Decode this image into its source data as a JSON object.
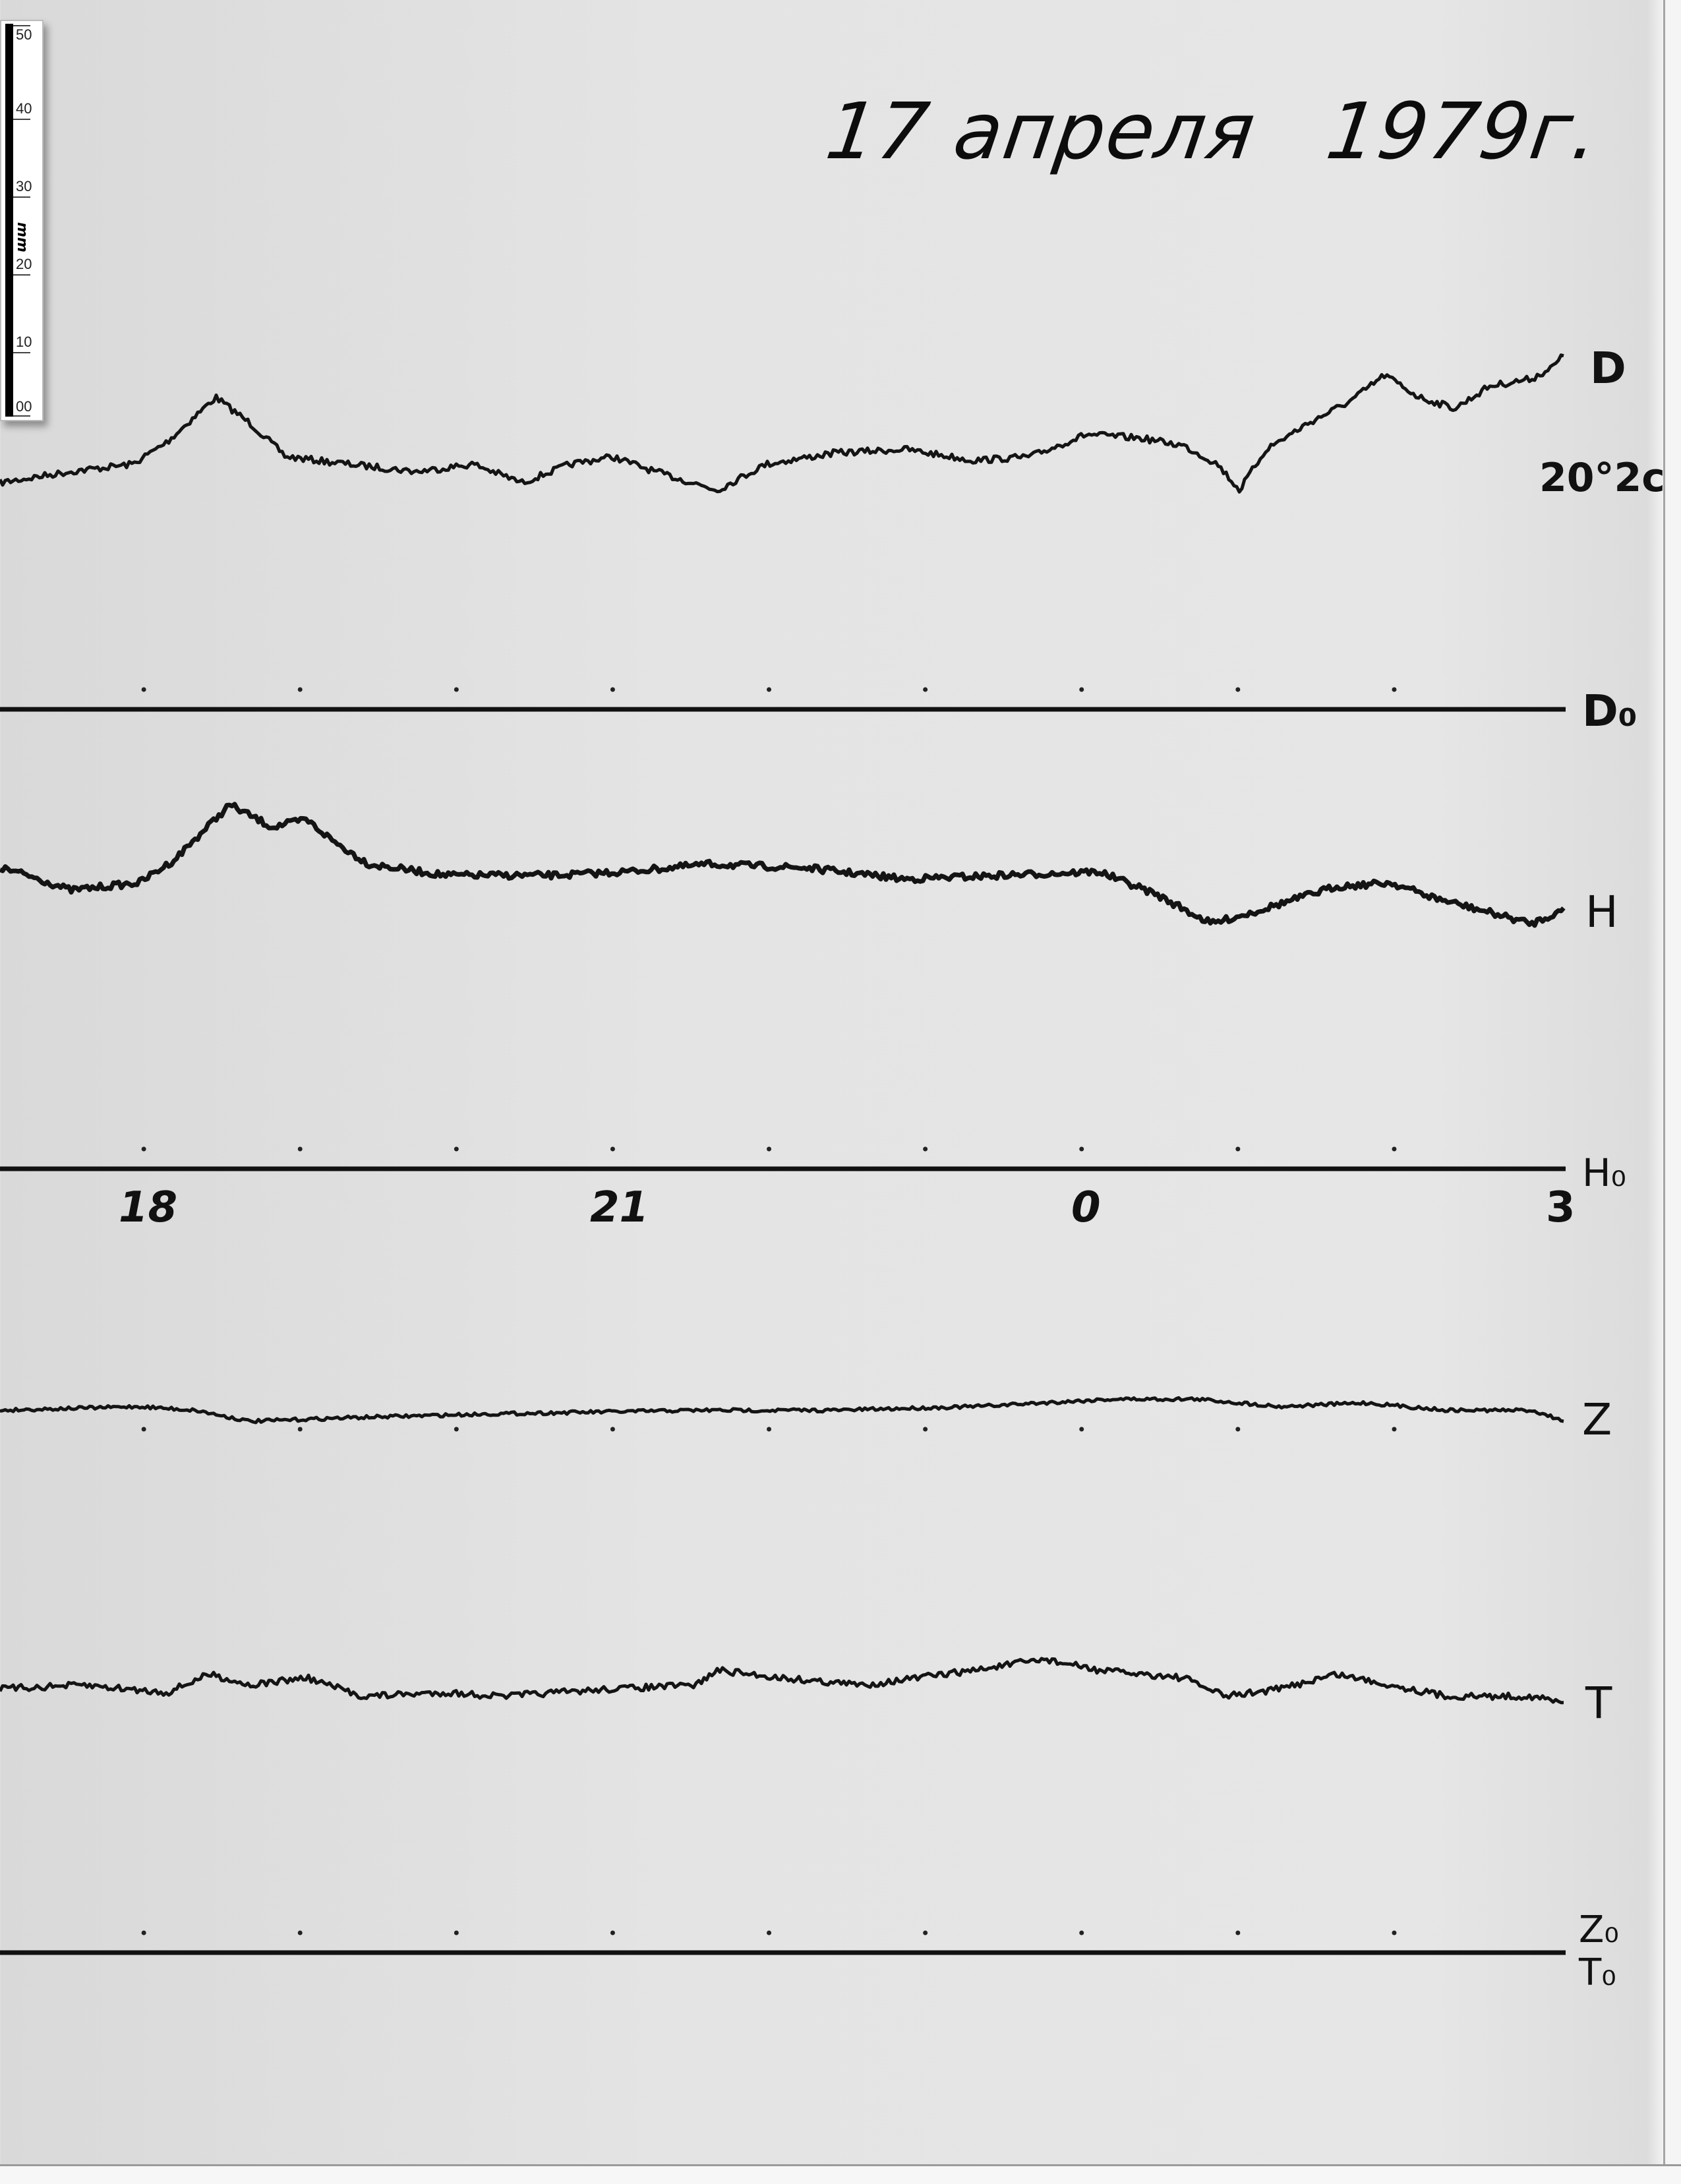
{
  "title": {
    "date": "17 апреля",
    "year": "1979г."
  },
  "ruler": {
    "unit": "mm",
    "labels": [
      "50",
      "40",
      "30",
      "20",
      "10",
      "00"
    ]
  },
  "channel_labels": {
    "D": "D",
    "scale_note": "20°2c",
    "D0": "D₀",
    "H": "H",
    "H0": "H₀",
    "Z": "Z",
    "T": "T",
    "Z0": "Z₀",
    "T0": "T₀"
  },
  "chart_data": {
    "type": "line",
    "title": "17 апреля 1979г.",
    "x_tick_labels": [
      "18",
      "21",
      "0",
      "3"
    ],
    "x_ticks_hours": [
      18,
      21,
      24,
      27
    ],
    "hour_marks": [
      18,
      19,
      20,
      21,
      22,
      23,
      24,
      25,
      26
    ],
    "xlim_hours": [
      17.08,
      27.1
    ],
    "y_unit": "mm",
    "grid": false,
    "colors": {
      "trace": "#141414",
      "baseline": "#111111",
      "paper": "#e4e4e4"
    },
    "series": [
      {
        "name": "D",
        "baseline": "D0",
        "points": [
          [
            17.08,
            30.5
          ],
          [
            17.53,
            32
          ],
          [
            17.93,
            33
          ],
          [
            18.15,
            36
          ],
          [
            18.46,
            42
          ],
          [
            18.68,
            38.5
          ],
          [
            18.91,
            34
          ],
          [
            19.31,
            33
          ],
          [
            19.75,
            32
          ],
          [
            20.11,
            33
          ],
          [
            20.42,
            30.5
          ],
          [
            20.73,
            33
          ],
          [
            21.0,
            34
          ],
          [
            21.27,
            32
          ],
          [
            21.67,
            29.5
          ],
          [
            21.98,
            33
          ],
          [
            22.42,
            34.5
          ],
          [
            22.87,
            35
          ],
          [
            23.31,
            33.5
          ],
          [
            23.67,
            34
          ],
          [
            24.03,
            37
          ],
          [
            24.38,
            36.5
          ],
          [
            24.65,
            35.5
          ],
          [
            24.87,
            33
          ],
          [
            25.01,
            29.5
          ],
          [
            25.18,
            35
          ],
          [
            25.45,
            38.5
          ],
          [
            25.72,
            41.5
          ],
          [
            25.94,
            45
          ],
          [
            26.16,
            42
          ],
          [
            26.39,
            40.5
          ],
          [
            26.61,
            43.5
          ],
          [
            26.88,
            44.5
          ],
          [
            27.01,
            46
          ],
          [
            27.1,
            48
          ]
        ]
      },
      {
        "name": "H",
        "baseline": "H0",
        "points": [
          [
            17.08,
            40.5
          ],
          [
            17.26,
            39.5
          ],
          [
            17.53,
            37.5
          ],
          [
            17.97,
            38.5
          ],
          [
            18.19,
            41.5
          ],
          [
            18.55,
            49
          ],
          [
            18.82,
            46
          ],
          [
            19.04,
            47
          ],
          [
            19.22,
            44
          ],
          [
            19.44,
            41
          ],
          [
            19.93,
            39.5
          ],
          [
            20.64,
            39.5
          ],
          [
            21.09,
            40
          ],
          [
            21.62,
            41
          ],
          [
            22.24,
            40.5
          ],
          [
            22.87,
            39
          ],
          [
            23.49,
            39.5
          ],
          [
            24.11,
            40
          ],
          [
            24.47,
            37
          ],
          [
            24.83,
            33
          ],
          [
            25.09,
            34.5
          ],
          [
            25.63,
            38
          ],
          [
            25.98,
            38.5
          ],
          [
            26.25,
            36.5
          ],
          [
            26.61,
            34.5
          ],
          [
            26.88,
            33
          ],
          [
            27.1,
            35
          ]
        ]
      },
      {
        "name": "Z",
        "baseline": "Z0",
        "points": [
          [
            17.08,
            73
          ],
          [
            17.97,
            73.5
          ],
          [
            18.33,
            73
          ],
          [
            18.68,
            71.5
          ],
          [
            19.31,
            72
          ],
          [
            20.2,
            72.5
          ],
          [
            21.53,
            73
          ],
          [
            22.42,
            73
          ],
          [
            23.31,
            73.5
          ],
          [
            24.2,
            74.5
          ],
          [
            24.74,
            74.5
          ],
          [
            25.27,
            73.5
          ],
          [
            25.81,
            74
          ],
          [
            26.34,
            73
          ],
          [
            26.88,
            73
          ],
          [
            27.1,
            71.5
          ]
        ]
      },
      {
        "name": "T",
        "baseline": "T0",
        "points": [
          [
            17.08,
            35.5
          ],
          [
            17.61,
            36
          ],
          [
            18.15,
            35
          ],
          [
            18.42,
            37.5
          ],
          [
            18.68,
            36
          ],
          [
            19.04,
            37
          ],
          [
            19.4,
            34.5
          ],
          [
            19.93,
            35
          ],
          [
            20.29,
            34.5
          ],
          [
            21.0,
            35.5
          ],
          [
            21.53,
            36
          ],
          [
            21.67,
            38
          ],
          [
            22.07,
            37
          ],
          [
            22.6,
            36
          ],
          [
            23.31,
            38
          ],
          [
            23.76,
            39.5
          ],
          [
            24.11,
            38
          ],
          [
            24.65,
            37
          ],
          [
            24.92,
            34.5
          ],
          [
            25.27,
            35.5
          ],
          [
            25.63,
            37.5
          ],
          [
            25.98,
            36
          ],
          [
            26.34,
            34.5
          ],
          [
            26.88,
            34.5
          ],
          [
            27.1,
            33.5
          ]
        ]
      }
    ]
  }
}
